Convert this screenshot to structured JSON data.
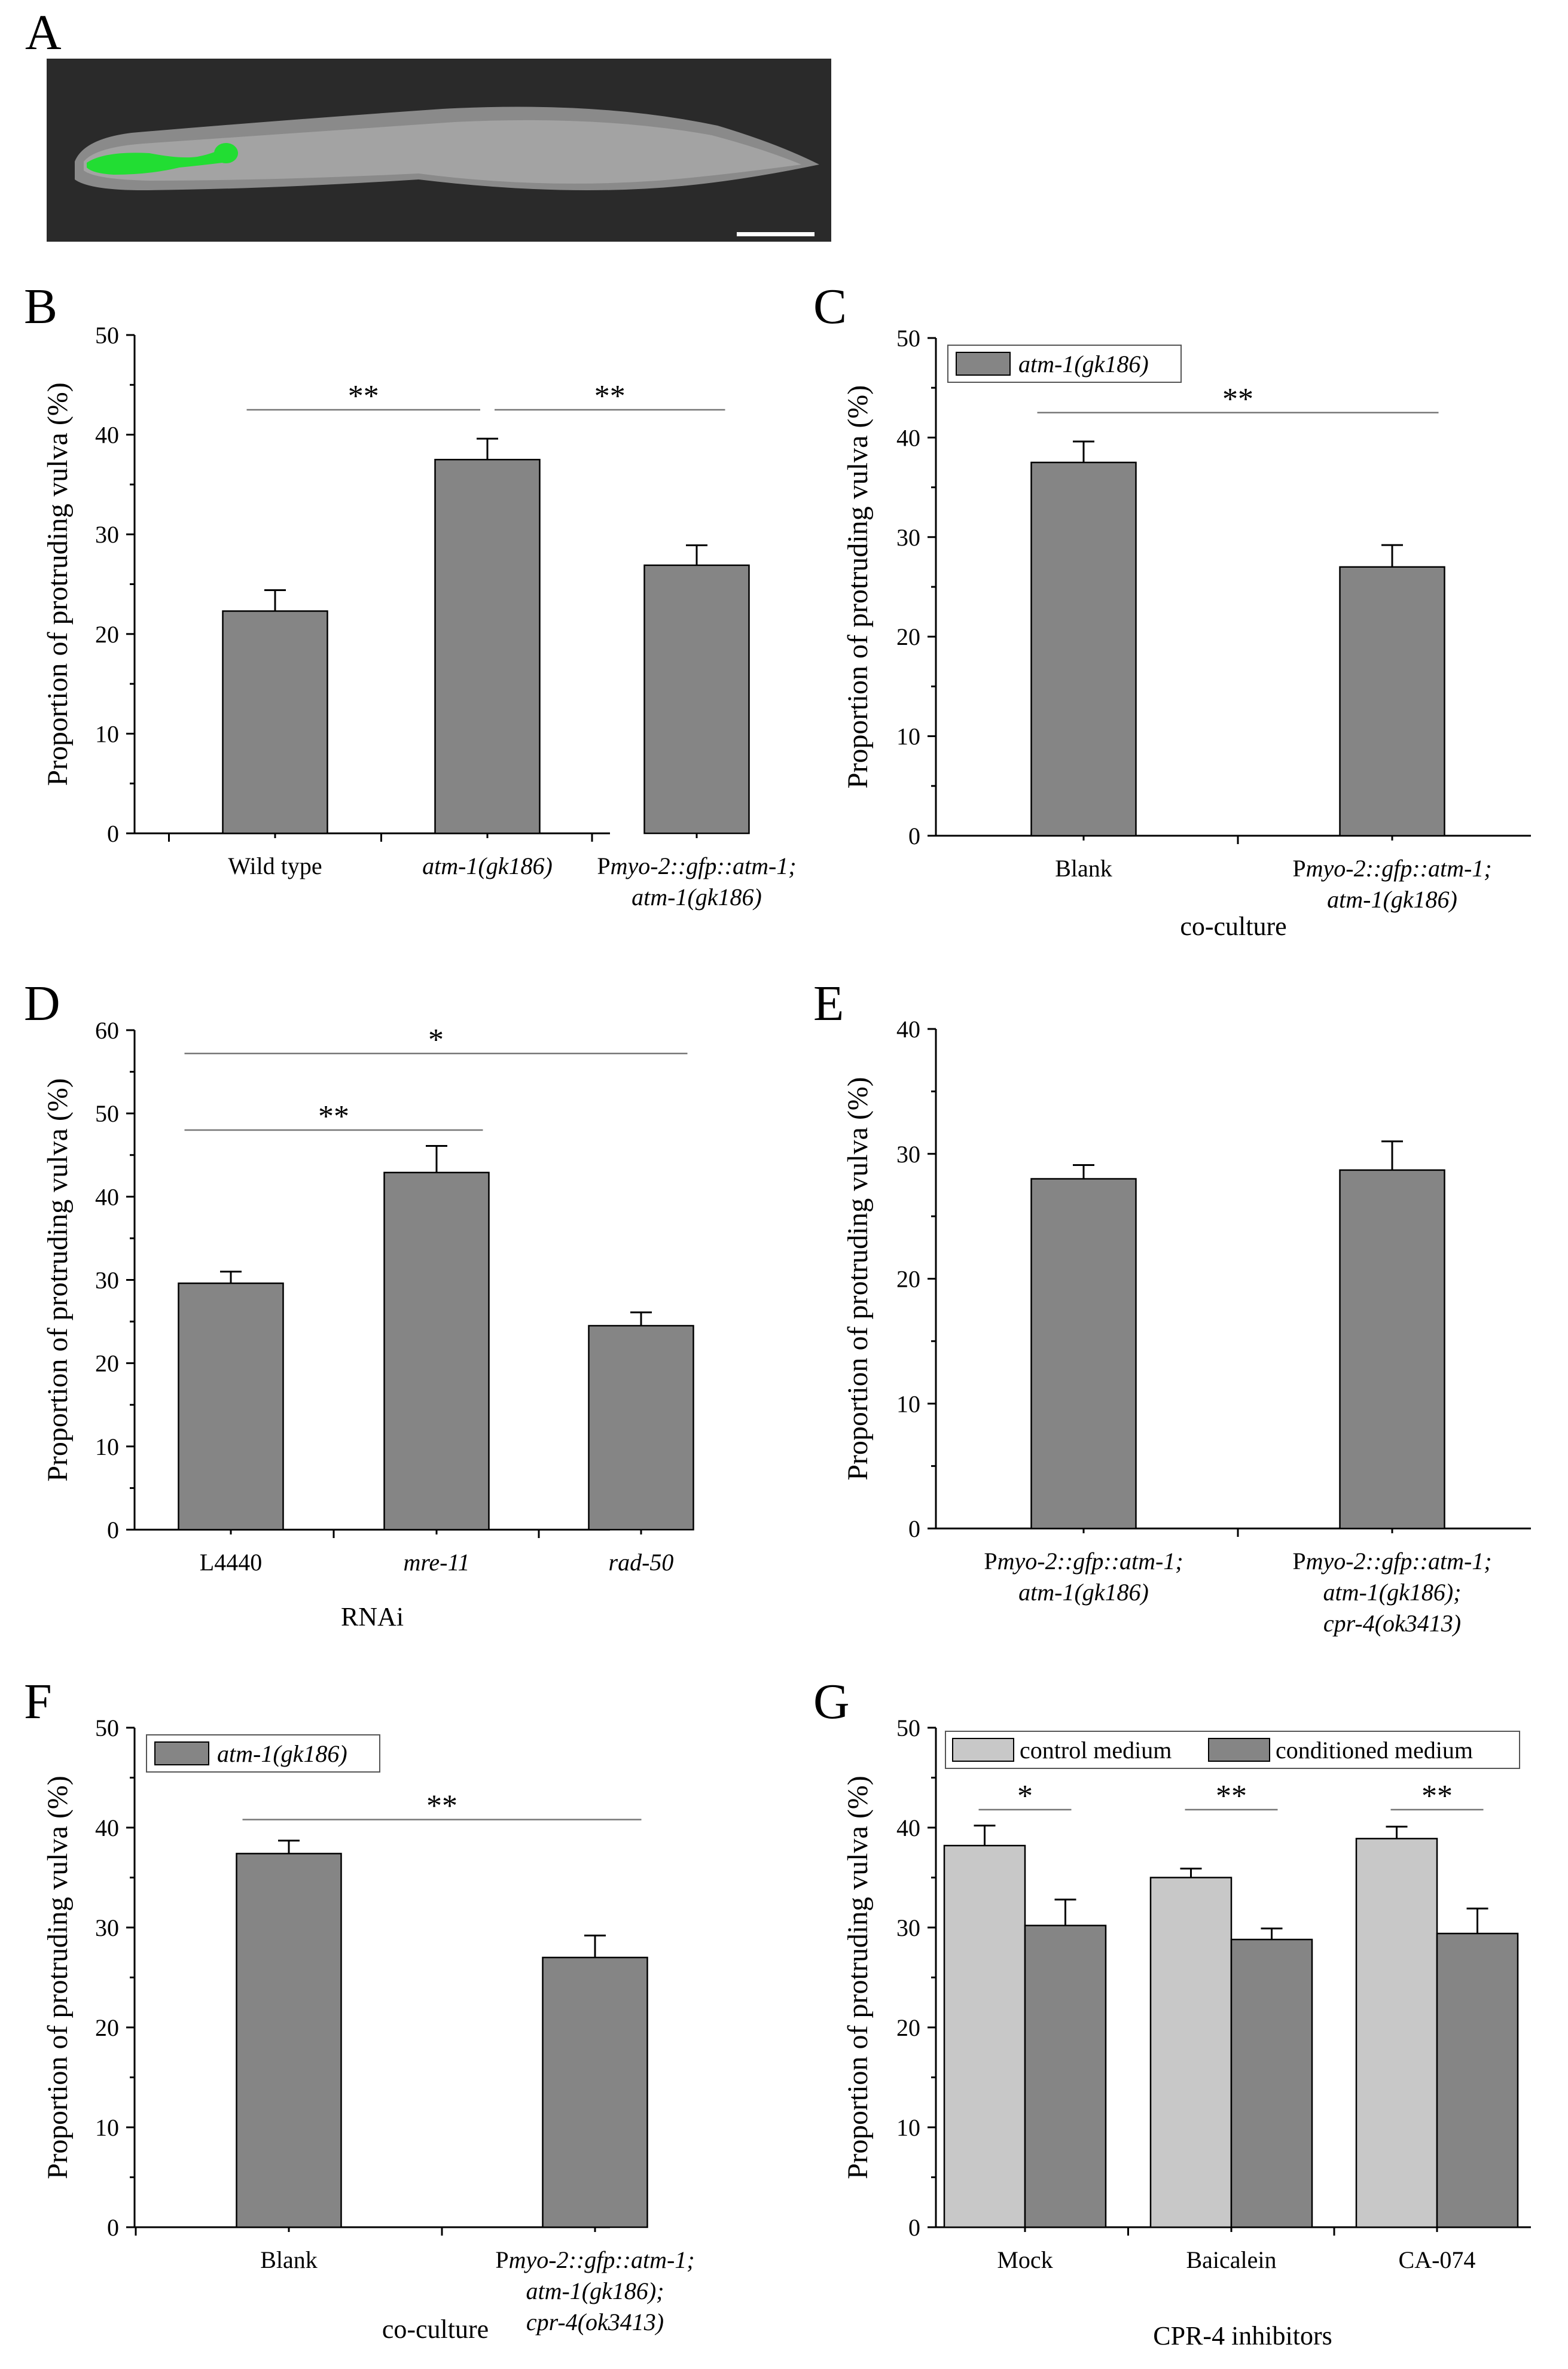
{
  "colors": {
    "bar": "#858585",
    "bar_light": "#c8c8c8",
    "axis": "#000000",
    "sig_line": "#777777",
    "worm_bg": "#2a2a2a",
    "gfp": "#22dd33"
  },
  "panelA": {
    "letter": "A",
    "image_desc_icon": "worm-micrograph-icon"
  },
  "chart_data": [
    {
      "id": "B",
      "letter": "B",
      "type": "bar",
      "ylabel": "Proportion of protruding vulva (%)",
      "xlabel": "",
      "ylim": [
        0,
        50
      ],
      "yticks": [
        0,
        10,
        20,
        30,
        40,
        50
      ],
      "categories": [
        {
          "lines": [
            {
              "t": [
                {
                  "s": "Wild type",
                  "i": false
                }
              ]
            }
          ]
        },
        {
          "lines": [
            {
              "t": [
                {
                  "s": "atm-1(gk186)",
                  "i": true
                }
              ]
            }
          ]
        },
        {
          "lines": [
            {
              "t": [
                {
                  "s": "P",
                  "i": false
                },
                {
                  "s": "myo-2::gfp::atm-1;",
                  "i": true
                }
              ]
            },
            {
              "t": [
                {
                  "s": "atm-1(gk186)",
                  "i": true
                }
              ]
            }
          ]
        }
      ],
      "series": [
        {
          "name": "",
          "color": "dark",
          "values": [
            22.3,
            37.5,
            26.9
          ],
          "errors": [
            2.1,
            2.1,
            2.0
          ]
        }
      ],
      "legend": null,
      "significance": [
        {
          "from": 0,
          "to": 1,
          "label": "**",
          "y": 42.5
        },
        {
          "from": 1,
          "to": 2,
          "label": "**",
          "y": 42.5
        }
      ]
    },
    {
      "id": "C",
      "letter": "C",
      "type": "bar",
      "ylabel": "Proportion of protruding vulva (%)",
      "xlabel": "co-culture",
      "ylim": [
        0,
        50
      ],
      "yticks": [
        0,
        10,
        20,
        30,
        40,
        50
      ],
      "categories": [
        {
          "lines": [
            {
              "t": [
                {
                  "s": "Blank",
                  "i": false
                }
              ]
            }
          ]
        },
        {
          "lines": [
            {
              "t": [
                {
                  "s": "P",
                  "i": false
                },
                {
                  "s": "myo-2::gfp::atm-1;",
                  "i": true
                }
              ]
            },
            {
              "t": [
                {
                  "s": "atm-1(gk186)",
                  "i": true
                }
              ]
            }
          ]
        }
      ],
      "series": [
        {
          "name": "atm-1(gk186)",
          "color": "dark",
          "values": [
            37.5,
            27.0
          ],
          "errors": [
            2.1,
            2.2
          ]
        }
      ],
      "legend": {
        "entries": [
          "atm-1(gk186)"
        ],
        "italic": true,
        "position": "top-left"
      },
      "significance": [
        {
          "from": 0,
          "to": 1,
          "label": "**",
          "y": 42.5
        }
      ]
    },
    {
      "id": "D",
      "letter": "D",
      "type": "bar",
      "ylabel": "Proportion of protruding vulva (%)",
      "xlabel": "RNAi",
      "ylim": [
        0,
        60
      ],
      "yticks": [
        0,
        10,
        20,
        30,
        40,
        50,
        60
      ],
      "categories": [
        {
          "lines": [
            {
              "t": [
                {
                  "s": "L4440",
                  "i": false
                }
              ]
            }
          ]
        },
        {
          "lines": [
            {
              "t": [
                {
                  "s": "mre-11",
                  "i": true
                }
              ]
            }
          ]
        },
        {
          "lines": [
            {
              "t": [
                {
                  "s": "rad-50",
                  "i": true
                }
              ]
            }
          ]
        }
      ],
      "series": [
        {
          "name": "",
          "color": "dark",
          "values": [
            29.6,
            42.9,
            24.5
          ],
          "errors": [
            1.4,
            3.2,
            1.6
          ]
        }
      ],
      "legend": null,
      "significance": [
        {
          "from": 0,
          "to": 2,
          "label": "*",
          "y": 57.2
        },
        {
          "from": 0,
          "to": 1,
          "label": "**",
          "y": 48.0
        }
      ]
    },
    {
      "id": "E",
      "letter": "E",
      "type": "bar",
      "ylabel": "Proportion of protruding vulva (%)",
      "xlabel": "",
      "ylim": [
        0,
        40
      ],
      "yticks": [
        0,
        10,
        20,
        30,
        40
      ],
      "categories": [
        {
          "lines": [
            {
              "t": [
                {
                  "s": "P",
                  "i": false
                },
                {
                  "s": "myo-2::gfp::atm-1;",
                  "i": true
                }
              ]
            },
            {
              "t": [
                {
                  "s": "atm-1(gk186)",
                  "i": true
                }
              ]
            }
          ]
        },
        {
          "lines": [
            {
              "t": [
                {
                  "s": "P",
                  "i": false
                },
                {
                  "s": "myo-2::gfp::atm-1;",
                  "i": true
                }
              ]
            },
            {
              "t": [
                {
                  "s": "atm-1(gk186);",
                  "i": true
                }
              ]
            },
            {
              "t": [
                {
                  "s": "cpr-4(ok3413)",
                  "i": true
                }
              ]
            }
          ]
        }
      ],
      "series": [
        {
          "name": "",
          "color": "dark",
          "values": [
            28.0,
            28.7
          ],
          "errors": [
            1.1,
            2.3
          ]
        }
      ],
      "legend": null,
      "significance": []
    },
    {
      "id": "F",
      "letter": "F",
      "type": "bar",
      "ylabel": "Proportion of protruding vulva (%)",
      "xlabel": "co-culture",
      "ylim": [
        0,
        50
      ],
      "yticks": [
        0,
        10,
        20,
        30,
        40,
        50
      ],
      "categories": [
        {
          "lines": [
            {
              "t": [
                {
                  "s": "Blank",
                  "i": false
                }
              ]
            }
          ]
        },
        {
          "lines": [
            {
              "t": [
                {
                  "s": "P",
                  "i": false
                },
                {
                  "s": "myo-2::gfp::atm-1;",
                  "i": true
                }
              ]
            },
            {
              "t": [
                {
                  "s": "atm-1(gk186);",
                  "i": true
                }
              ]
            },
            {
              "t": [
                {
                  "s": "cpr-4(ok3413)",
                  "i": true
                }
              ]
            }
          ]
        }
      ],
      "series": [
        {
          "name": "atm-1(gk186)",
          "color": "dark",
          "values": [
            37.4,
            27.0
          ],
          "errors": [
            1.3,
            2.2
          ]
        }
      ],
      "legend": {
        "entries": [
          "atm-1(gk186)"
        ],
        "italic": true,
        "position": "top-left"
      },
      "significance": [
        {
          "from": 0,
          "to": 1,
          "label": "**",
          "y": 40.8
        }
      ]
    },
    {
      "id": "G",
      "letter": "G",
      "type": "bar",
      "ylabel": "Proportion of protruding vulva (%)",
      "xlabel": "CPR-4  inhibitors",
      "ylim": [
        0,
        50
      ],
      "yticks": [
        0,
        10,
        20,
        30,
        40,
        50
      ],
      "categories": [
        {
          "lines": [
            {
              "t": [
                {
                  "s": "Mock",
                  "i": false
                }
              ]
            }
          ]
        },
        {
          "lines": [
            {
              "t": [
                {
                  "s": "Baicalein",
                  "i": false
                }
              ]
            }
          ]
        },
        {
          "lines": [
            {
              "t": [
                {
                  "s": "CA-074",
                  "i": false
                }
              ]
            }
          ]
        }
      ],
      "series": [
        {
          "name": "control medium",
          "color": "light",
          "values": [
            38.2,
            35.0,
            38.9
          ],
          "errors": [
            2.0,
            0.9,
            1.2
          ]
        },
        {
          "name": "conditioned medium",
          "color": "dark",
          "values": [
            30.2,
            28.8,
            29.4
          ],
          "errors": [
            2.6,
            1.1,
            2.5
          ]
        }
      ],
      "legend": {
        "entries": [
          "control medium",
          "conditioned medium"
        ],
        "italic": false,
        "position": "top"
      },
      "significance": [
        {
          "from": 0,
          "to": 0,
          "label": "*",
          "y": 41.8
        },
        {
          "from": 1,
          "to": 1,
          "label": "**",
          "y": 41.8
        },
        {
          "from": 2,
          "to": 2,
          "label": "**",
          "y": 41.8
        }
      ]
    }
  ]
}
